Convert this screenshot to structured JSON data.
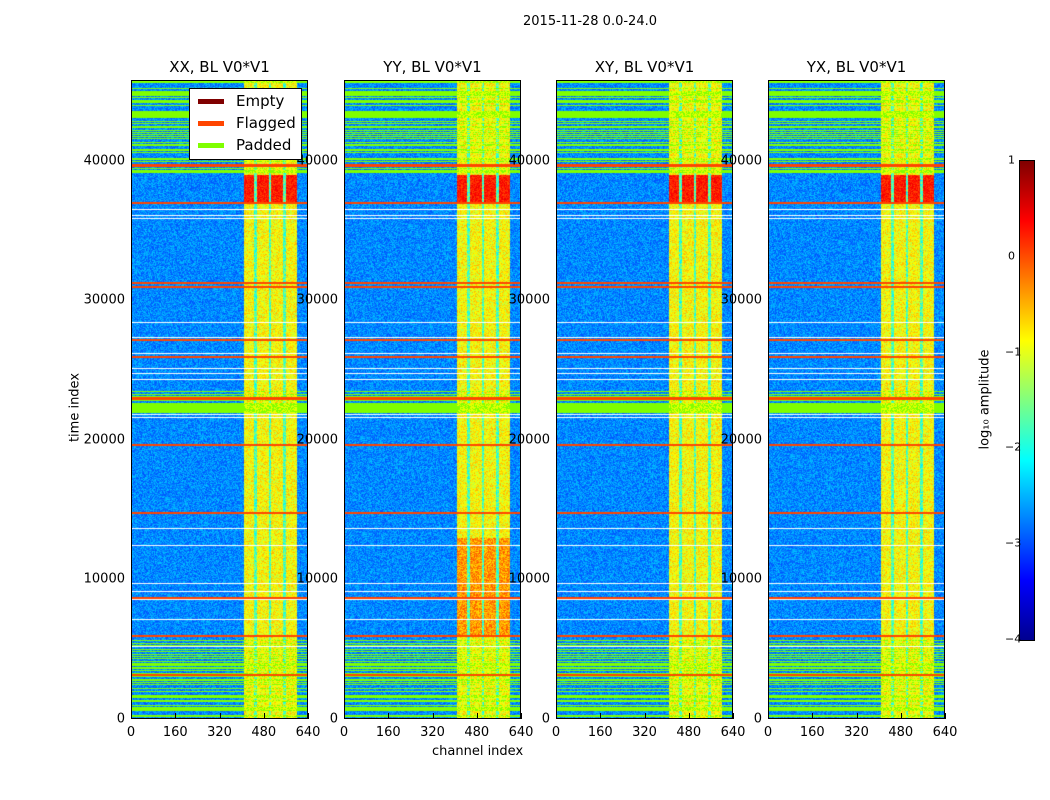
{
  "suptitle": "2015-11-28 0.0-24.0",
  "chart_data": {
    "type": "heatmap",
    "title": "2015-11-28 0.0-24.0",
    "xlabel": "channel index",
    "ylabel": "time index",
    "xlim": [
      0,
      640
    ],
    "ylim": [
      0,
      45800
    ],
    "xticks": [
      "0",
      "160",
      "320",
      "480",
      "640"
    ],
    "xtick_values": [
      0,
      160,
      320,
      480,
      640
    ],
    "yticks": [
      "0",
      "10000",
      "20000",
      "30000",
      "40000"
    ],
    "ytick_values": [
      0,
      10000,
      20000,
      30000,
      40000
    ],
    "panels": [
      {
        "title": "XX, BL V0*V1"
      },
      {
        "title": "YY, BL V0*V1"
      },
      {
        "title": "XY, BL V0*V1"
      },
      {
        "title": "YX, BL V0*V1"
      }
    ],
    "legend": {
      "placement": "upper-right of first panel",
      "entries": [
        {
          "label": "Empty",
          "color": "#800000"
        },
        {
          "label": "Flagged",
          "color": "#ff4500"
        },
        {
          "label": "Padded",
          "color": "#7fff00"
        }
      ]
    },
    "colorbar": {
      "label": "log₁₀ amplitude",
      "range": [
        -4,
        1
      ],
      "ticks": [
        "1",
        "0",
        "−1",
        "−2",
        "−3",
        "−4"
      ],
      "tick_values": [
        1,
        0,
        -1,
        -2,
        -3,
        -4
      ],
      "colormap": "jet"
    },
    "bright_channel_range": [
      405,
      597
    ],
    "flagged_rows": [
      37000,
      31300,
      31000,
      27200,
      26000,
      23000,
      19700,
      14800,
      8700,
      6000,
      3200,
      39700
    ],
    "padded_row_regions": [
      [
        39000,
        45800
      ],
      [
        22000,
        23600
      ],
      [
        0,
        6000
      ]
    ]
  }
}
